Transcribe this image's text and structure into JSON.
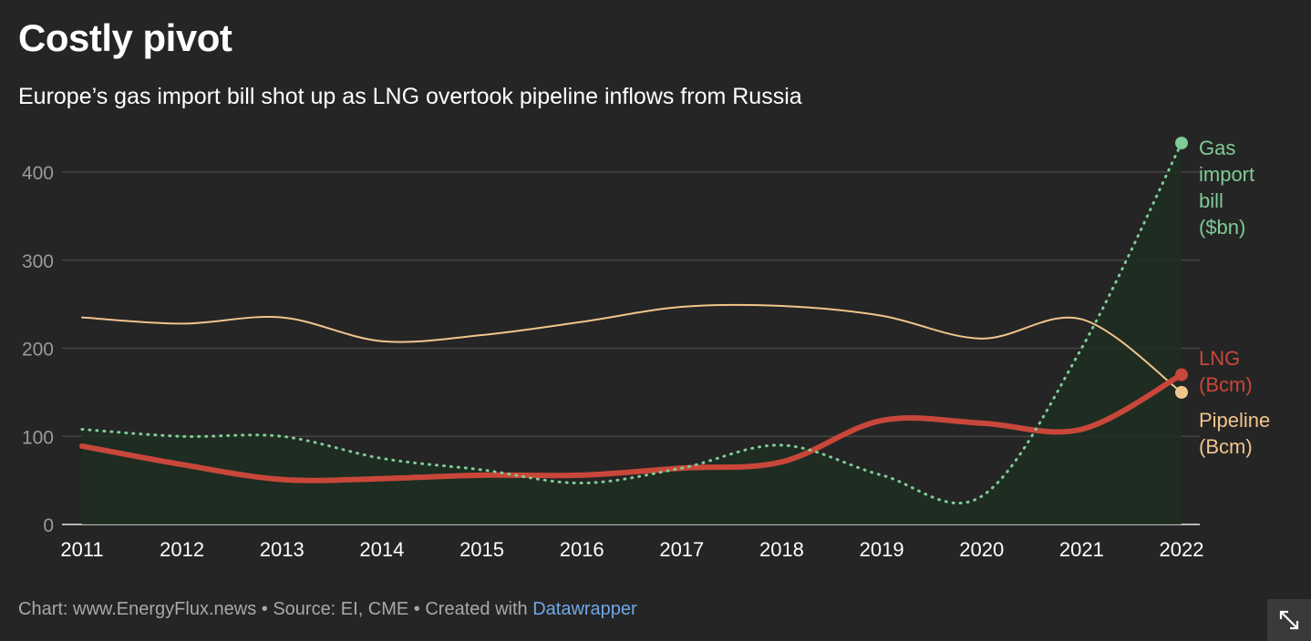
{
  "header": {
    "title": "Costly pivot",
    "subtitle": "Europe’s gas import bill shot up as LNG overtook pipeline inflows from Russia"
  },
  "footer": {
    "credit": "Chart: www.EnergyFlux.news • Source: EI, CME • Created with ",
    "link_label": "Datawrapper"
  },
  "chart_data": {
    "type": "line",
    "title": "Costly pivot",
    "xlabel": "",
    "ylabel": "",
    "x": [
      2011,
      2012,
      2013,
      2014,
      2015,
      2016,
      2017,
      2018,
      2019,
      2020,
      2021,
      2022
    ],
    "xlim": [
      2011,
      2022
    ],
    "ylim": [
      0,
      400
    ],
    "yticks": [
      0,
      100,
      200,
      300,
      400
    ],
    "grid": true,
    "legend": "inline labels at right end of each series",
    "series": [
      {
        "name": "Pipeline",
        "label_lines": [
          "Pipeline",
          "(Bcm)"
        ],
        "color": "#f2c58c",
        "style": "thin-solid",
        "values": [
          235,
          228,
          235,
          208,
          215,
          230,
          247,
          248,
          237,
          211,
          233,
          150
        ]
      },
      {
        "name": "LNG",
        "label_lines": [
          "LNG",
          "(Bcm)"
        ],
        "color": "#c9473a",
        "style": "thick-solid",
        "values": [
          89,
          68,
          51,
          52,
          56,
          56,
          64,
          71,
          118,
          115,
          108,
          170
        ]
      },
      {
        "name": "Gas import bill",
        "label_lines": [
          "Gas",
          "import",
          "bill",
          "($bn)"
        ],
        "color": "#7fcc96",
        "style": "dotted-area",
        "values": [
          108,
          100,
          100,
          75,
          62,
          47,
          64,
          90,
          56,
          32,
          200,
          433
        ]
      }
    ]
  },
  "ui": {
    "expand_button": "expand-icon"
  }
}
